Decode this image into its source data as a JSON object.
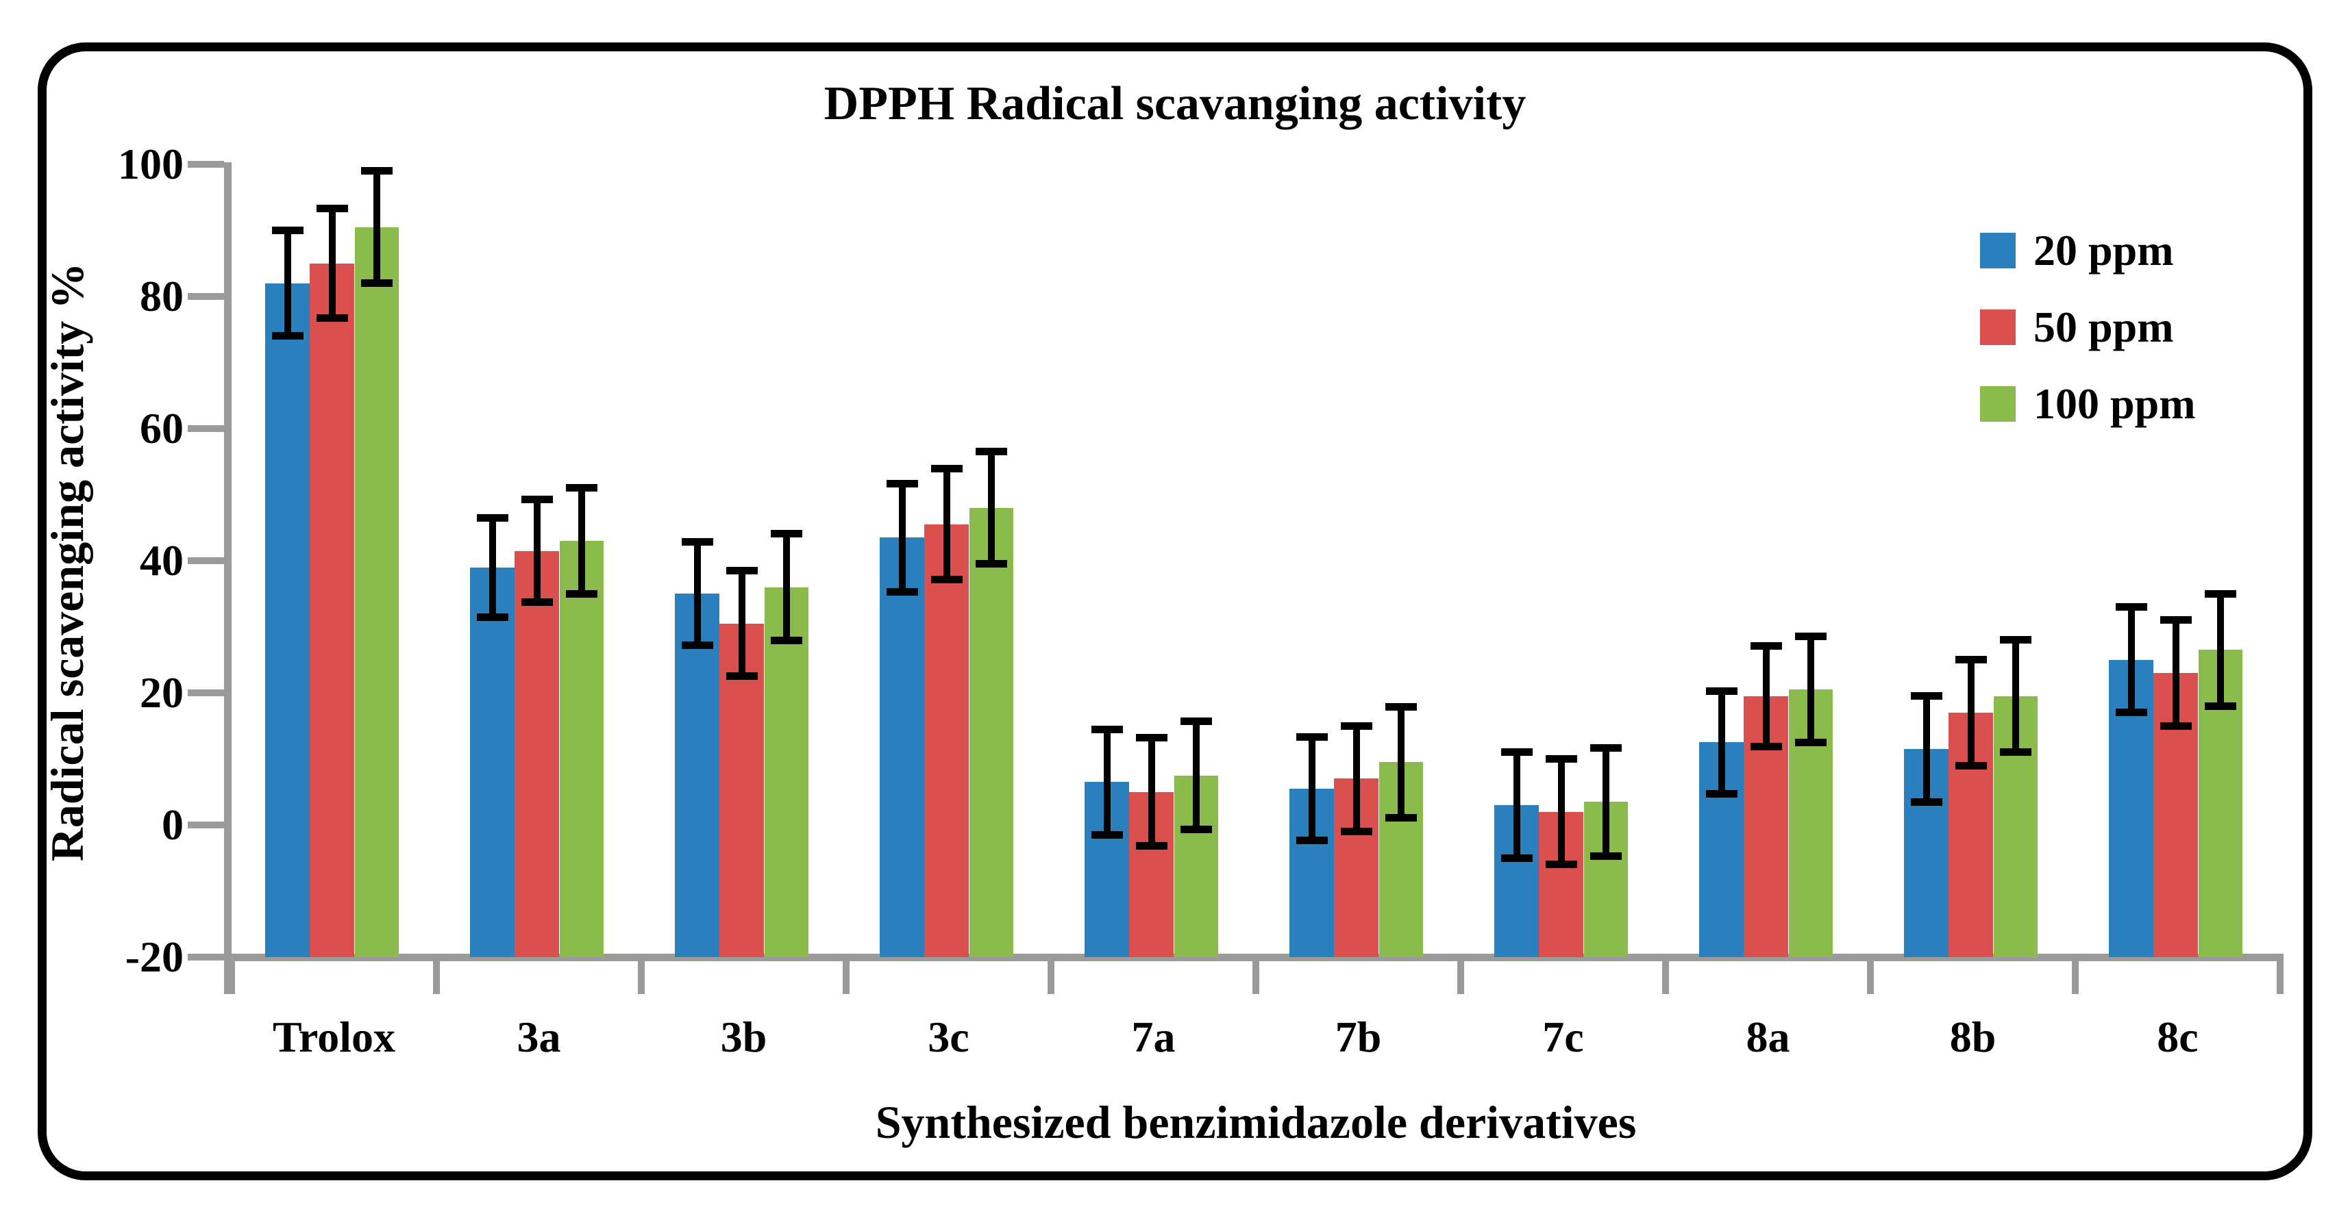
{
  "chart_data": {
    "type": "bar",
    "title": "DPPH Radical scavanging activity",
    "xlabel": "Synthesized benzimidazole derivatives",
    "ylabel": "Radical scavenging activity %",
    "categories": [
      "Trolox",
      "3a",
      "3b",
      "3c",
      "7a",
      "7b",
      "7c",
      "8a",
      "8b",
      "8c"
    ],
    "series": [
      {
        "name": "20 ppm",
        "color": "#2a80bd",
        "values": [
          82,
          39,
          35,
          43.5,
          6.5,
          5.5,
          3,
          12.5,
          11.5,
          25
        ],
        "errors": [
          8,
          7.5,
          7.8,
          8.2,
          8,
          7.8,
          8,
          7.8,
          8,
          8
        ]
      },
      {
        "name": "50 ppm",
        "color": "#d9504e",
        "values": [
          85,
          41.5,
          30.5,
          45.5,
          5,
          7,
          2,
          19.5,
          17,
          23
        ],
        "errors": [
          8.3,
          7.8,
          8,
          8.4,
          8.2,
          8,
          8,
          7.6,
          8,
          8
        ]
      },
      {
        "name": "100 ppm",
        "color": "#8cbb4d",
        "values": [
          90.5,
          43,
          36,
          48,
          7.5,
          9.5,
          3.5,
          20.5,
          19.5,
          26.5
        ],
        "errors": [
          8.5,
          8,
          8.1,
          8.5,
          8.2,
          8.4,
          8.2,
          8,
          8.5,
          8.5
        ]
      }
    ],
    "ylim": [
      -20,
      100
    ],
    "ytick_step": 20,
    "yticks": [
      -20,
      0,
      20,
      40,
      60,
      80,
      100
    ],
    "grid": false,
    "legend_position": "upper-right-inside",
    "bars_extend_to_axis_min": true,
    "error_bar_color": "#000000",
    "axis_color": "#9b9b9b"
  }
}
